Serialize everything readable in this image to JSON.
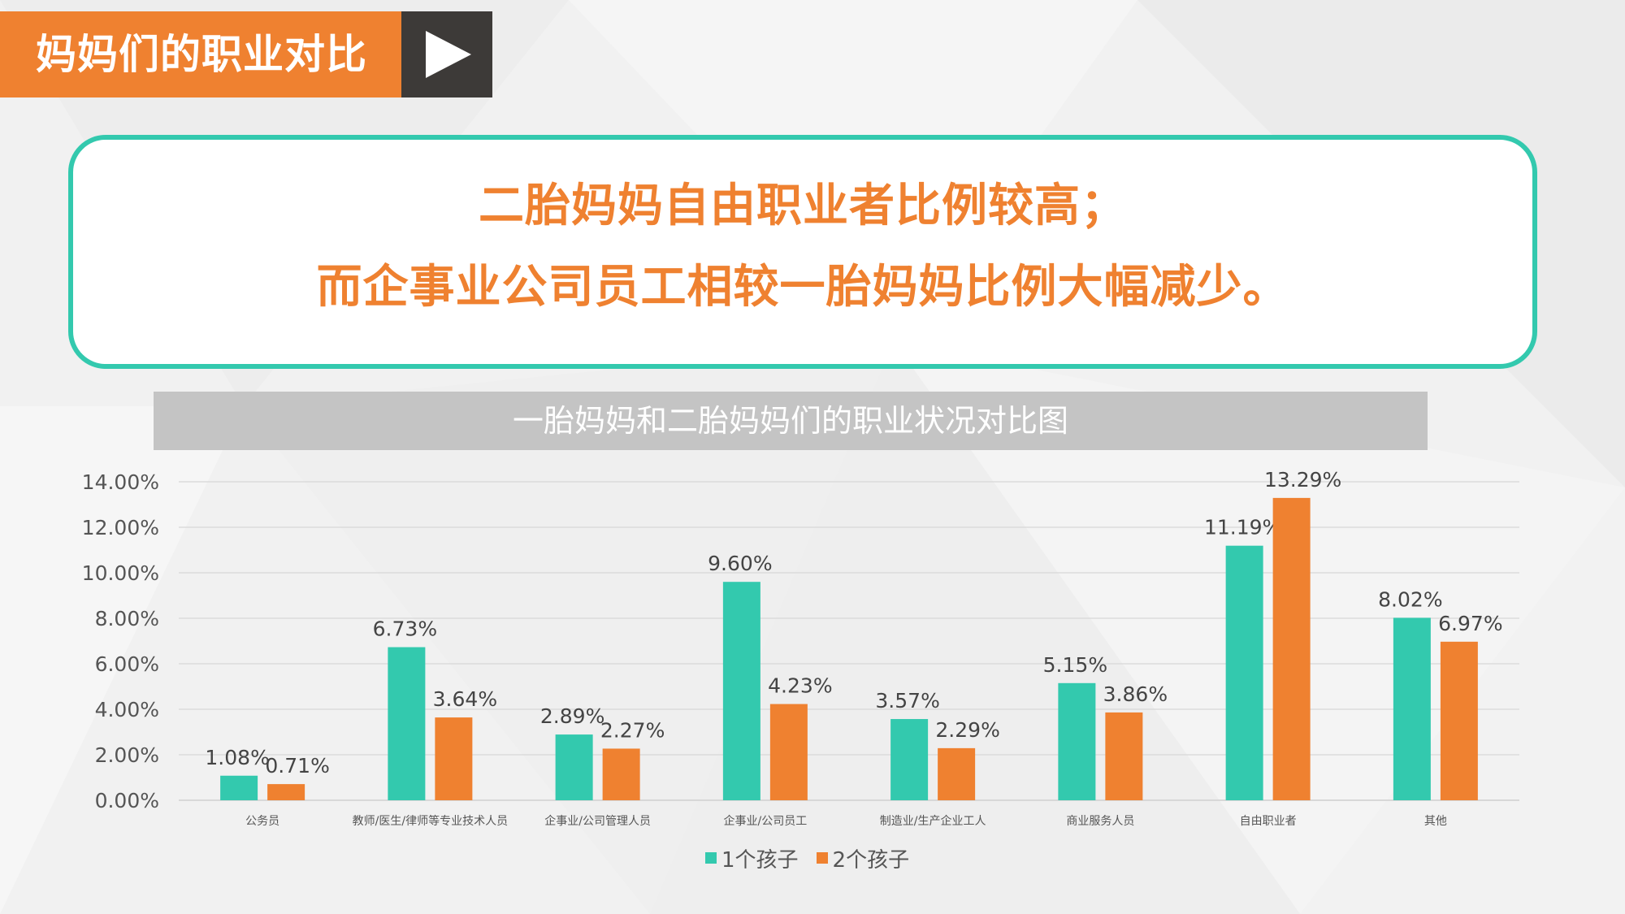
{
  "header": {
    "title": "妈妈们的职业对比"
  },
  "callout": {
    "line1": "二胎妈妈自由职业者比例较高；",
    "line2": "而企事业公司员工相较一胎妈妈比例大幅减少。"
  },
  "colors": {
    "accent_orange": "#ef8130",
    "accent_teal": "#33c9ae",
    "dark": "#3d3a38",
    "title_bar": "#c4c4c4"
  },
  "chart_data": {
    "type": "bar",
    "title": "一胎妈妈和二胎妈妈们的职业状况对比图",
    "categories": [
      "公务员",
      "教师/医生/律师等专业技术人员",
      "企事业/公司管理人员",
      "企事业/公司员工",
      "制造业/生产企业工人",
      "商业服务人员",
      "自由职业者",
      "其他"
    ],
    "series": [
      {
        "name": "1个孩子",
        "color": "#33c9ae",
        "values": [
          1.08,
          6.73,
          2.89,
          9.6,
          3.57,
          5.15,
          11.19,
          8.02
        ],
        "labels": [
          "1.08%",
          "6.73%",
          "2.89%",
          "9.60%",
          "3.57%",
          "5.15%",
          "11.19%",
          "8.02%"
        ]
      },
      {
        "name": "2个孩子",
        "color": "#ef8130",
        "values": [
          0.71,
          3.64,
          2.27,
          4.23,
          2.29,
          3.86,
          13.29,
          6.97
        ],
        "labels": [
          "0.71%",
          "3.64%",
          "2.27%",
          "4.23%",
          "2.29%",
          "3.86%",
          "13.29%",
          "6.97%"
        ]
      }
    ],
    "ylim": [
      0,
      14
    ],
    "yticks": [
      "0.00%",
      "2.00%",
      "4.00%",
      "6.00%",
      "8.00%",
      "10.00%",
      "12.00%",
      "14.00%"
    ],
    "grid": true,
    "legend_position": "bottom"
  }
}
